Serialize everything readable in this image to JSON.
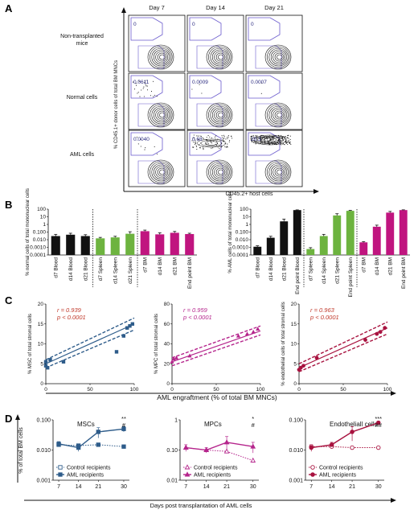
{
  "panels": [
    "A",
    "B",
    "C",
    "D"
  ],
  "panel_a": {
    "days": [
      "Day 7",
      "Day 14",
      "Day 21"
    ],
    "rows": [
      {
        "label": [
          "Non-transplanted",
          "mice"
        ],
        "gates": [
          "0",
          "0",
          "0"
        ],
        "dots": [
          0,
          0,
          0
        ]
      },
      {
        "label": [
          "Normal cells"
        ],
        "gates": [
          "0.0611",
          "0.0009",
          "0.0007"
        ],
        "dots": [
          26,
          3,
          2
        ]
      },
      {
        "label": [
          "AML cells"
        ],
        "gates": [
          "0.0040",
          "0.68",
          "20.3"
        ],
        "dots": [
          8,
          90,
          220
        ]
      }
    ],
    "ylabel": "% CD45.1+ donor cells of total BM MNCs",
    "xlabel": "CD45.2+ host cells"
  },
  "panel_b": {
    "left": {
      "type": "bar",
      "ylabel": "% normal cells of total mononuclear cells",
      "yticks": [
        "100",
        "10",
        "1",
        "0.100",
        "0.010",
        "0.0010",
        "0.0001"
      ],
      "ylim": [
        0.0001,
        100
      ],
      "categories": [
        "d7 Blood",
        "d14 Blood",
        "d21 Blood",
        "d7 Spleen",
        "d14 Spleen",
        "d21 Spleen",
        "d7 BM",
        "d14 BM",
        "d21 BM",
        "End point BM"
      ],
      "values": [
        0.03,
        0.045,
        0.03,
        0.015,
        0.02,
        0.06,
        0.13,
        0.05,
        0.08,
        0.055
      ],
      "errors": [
        0.02,
        0.025,
        0.015,
        0.005,
        0.008,
        0.05,
        0.05,
        0.03,
        0.04,
        0.015
      ],
      "colors": [
        "#111111",
        "#111111",
        "#111111",
        "#6db33f",
        "#6db33f",
        "#6db33f",
        "#c0157f",
        "#c0157f",
        "#c0157f",
        "#c0157f"
      ],
      "groups": [
        3,
        3,
        4
      ]
    },
    "right": {
      "type": "bar",
      "ylabel": "% AML cells of total mononuclear cells",
      "yticks": [
        "100",
        "10",
        "1",
        "0.100",
        "0.010",
        "0.0010",
        "0.0001"
      ],
      "ylim": [
        0.0001,
        100
      ],
      "categories": [
        "d7 Blood",
        "d14 Blood",
        "d21 Blood",
        "End point Blood",
        "d7 Spleen",
        "d14 Spleen",
        "d21 Spleen",
        "End point Spleen",
        "d7 BM",
        "d14 BM",
        "d21 BM",
        "End point BM"
      ],
      "values": [
        0.0012,
        0.018,
        2.5,
        75,
        0.0006,
        0.03,
        15,
        60,
        0.0045,
        0.5,
        35,
        75
      ],
      "errors": [
        0.0004,
        0.01,
        2.5,
        5,
        0.0003,
        0.02,
        10,
        8,
        0.001,
        0.3,
        15,
        6
      ],
      "colors": [
        "#111111",
        "#111111",
        "#111111",
        "#111111",
        "#6db33f",
        "#6db33f",
        "#6db33f",
        "#6db33f",
        "#c0157f",
        "#c0157f",
        "#c0157f",
        "#c0157f"
      ],
      "groups": [
        4,
        4,
        4
      ]
    }
  },
  "panel_c": {
    "xlabel": "AML engraftment (% of total BM MNCs)",
    "plots": [
      {
        "ylabel": "% MSC of total stromal cells",
        "r": "r = 0.939",
        "p": "p < 0.0001",
        "color": "#2e5c8a",
        "marker": "square",
        "stat_color": "#c0392b",
        "yticks": [
          "0",
          "5",
          "10",
          "15",
          "20"
        ],
        "ylim": [
          0,
          20
        ],
        "points": [
          [
            0,
            4.5
          ],
          [
            0,
            5.5
          ],
          [
            2,
            4
          ],
          [
            5,
            6
          ],
          [
            20,
            5.5
          ],
          [
            80,
            8
          ],
          [
            88,
            12
          ],
          [
            92,
            14
          ],
          [
            95,
            14.5
          ],
          [
            98,
            15
          ]
        ],
        "fit": [
          [
            0,
            5
          ],
          [
            100,
            15
          ]
        ],
        "band_lo": [
          [
            0,
            4
          ],
          [
            100,
            13.5
          ]
        ],
        "band_hi": [
          [
            0,
            6
          ],
          [
            100,
            16.5
          ]
        ]
      },
      {
        "ylabel": "% MPC of total stromal cells",
        "r": "r = 0.959",
        "p": "p < 0.0001",
        "color": "#b5258c",
        "marker": "triangle",
        "stat_color": "#b5258c",
        "yticks": [
          "0",
          "20",
          "40",
          "60",
          "80"
        ],
        "ylim": [
          0,
          80
        ],
        "points": [
          [
            0,
            22
          ],
          [
            2,
            25
          ],
          [
            5,
            26
          ],
          [
            20,
            28
          ],
          [
            75,
            48
          ],
          [
            85,
            50
          ],
          [
            92,
            52
          ],
          [
            97,
            55
          ]
        ],
        "fit": [
          [
            0,
            22
          ],
          [
            100,
            53
          ]
        ],
        "band_lo": [
          [
            0,
            18
          ],
          [
            100,
            49
          ]
        ],
        "band_hi": [
          [
            0,
            26
          ],
          [
            100,
            58
          ]
        ]
      },
      {
        "ylabel": "% endothelial cells of total stromal cells",
        "r": "r = 0.963",
        "p": "p < 0.0001",
        "color": "#a8123f",
        "marker": "circle",
        "stat_color": "#c0392b",
        "yticks": [
          "0",
          "5",
          "10",
          "15",
          "20"
        ],
        "ylim": [
          0,
          20
        ],
        "points": [
          [
            0,
            3.5
          ],
          [
            2,
            4
          ],
          [
            5,
            4.5
          ],
          [
            20,
            6.5
          ],
          [
            75,
            11
          ],
          [
            88,
            12.5
          ],
          [
            92,
            13
          ],
          [
            97,
            14
          ]
        ],
        "fit": [
          [
            0,
            4
          ],
          [
            100,
            14
          ]
        ],
        "band_lo": [
          [
            0,
            3
          ],
          [
            100,
            12.5
          ]
        ],
        "band_hi": [
          [
            0,
            5
          ],
          [
            100,
            15.5
          ]
        ]
      }
    ],
    "xticks": [
      "0",
      "50",
      "100"
    ]
  },
  "panel_d": {
    "ylabel": "% of total BM cells",
    "xlabel": "Days post transplantation of AML cells",
    "x": [
      7,
      14,
      21,
      30
    ],
    "xticks": [
      "7",
      "14",
      "21",
      "30"
    ],
    "plots": [
      {
        "title": "MSCs",
        "color": "#2e5c8a",
        "marker": "square",
        "yticks": [
          "0.100",
          "0.010",
          "0.001"
        ],
        "ylim": [
          0.001,
          0.1
        ],
        "control": [
          0.015,
          0.014,
          0.015,
          0.013
        ],
        "aml": [
          0.016,
          0.012,
          0.04,
          0.05
        ],
        "aml_err": [
          0.003,
          0.003,
          0.015,
          0.01
        ],
        "sig": [
          "**",
          "#"
        ],
        "legend": [
          "Control recipients",
          "AML recipients"
        ]
      },
      {
        "title": "MPCs",
        "color": "#b5258c",
        "marker": "triangle",
        "yticks": [
          "1",
          "0.10",
          "0.01"
        ],
        "ylim": [
          0.01,
          1
        ],
        "control": [
          0.12,
          0.1,
          0.09,
          0.045
        ],
        "aml": [
          0.12,
          0.1,
          0.18,
          0.13
        ],
        "aml_err": [
          0.03,
          0.02,
          0.1,
          0.05
        ],
        "sig": [
          "*",
          "#"
        ],
        "legend": [
          "Control recipients",
          "AML recipients"
        ]
      },
      {
        "title": "Endotheliall cells",
        "color": "#a8123f",
        "marker": "circle",
        "yticks": [
          "0.100",
          "0.010",
          "0.001"
        ],
        "ylim": [
          0.001,
          0.1
        ],
        "control": [
          0.013,
          0.013,
          0.012,
          0.012
        ],
        "aml": [
          0.012,
          0.015,
          0.04,
          0.08
        ],
        "aml_err": [
          0.003,
          0.003,
          0.02,
          0.01
        ],
        "sig": [
          "***",
          "##"
        ],
        "legend": [
          "Control recipients",
          "AML recipients"
        ]
      }
    ]
  }
}
